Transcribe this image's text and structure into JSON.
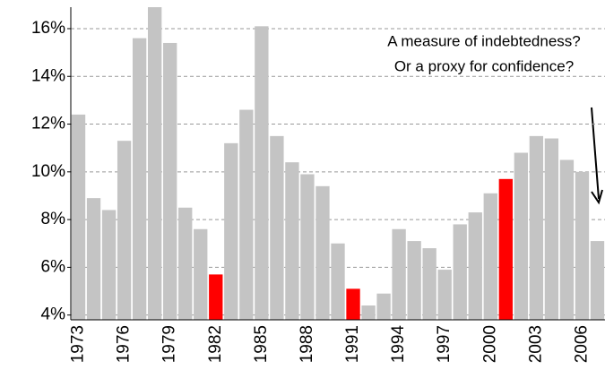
{
  "chart_data": {
    "type": "bar",
    "annotations": [
      "A measure of indebtedness?",
      "Or a proxy for confidence?"
    ],
    "categories": [
      "1973",
      null,
      null,
      "1976",
      null,
      null,
      "1979",
      null,
      null,
      "1982",
      null,
      null,
      "1985",
      null,
      null,
      "1988",
      null,
      null,
      "1991",
      null,
      null,
      "1994",
      null,
      null,
      "1997",
      null,
      null,
      "2000",
      null,
      null,
      "2003",
      null,
      null,
      "2006",
      null
    ],
    "values": [
      12.4,
      8.9,
      8.4,
      11.3,
      15.6,
      16.9,
      15.4,
      8.5,
      7.6,
      5.7,
      11.2,
      12.6,
      16.1,
      11.5,
      10.4,
      9.9,
      9.4,
      7.0,
      5.1,
      4.4,
      4.9,
      7.6,
      7.1,
      6.8,
      5.9,
      7.8,
      8.3,
      9.1,
      9.7,
      10.8,
      11.5,
      11.4,
      10.5,
      10.0,
      7.1
    ],
    "colors": [
      "#c4c4c4",
      "#c4c4c4",
      "#c4c4c4",
      "#c4c4c4",
      "#c4c4c4",
      "#c4c4c4",
      "#c4c4c4",
      "#c4c4c4",
      "#c4c4c4",
      "#ff0000",
      "#c4c4c4",
      "#c4c4c4",
      "#c4c4c4",
      "#c4c4c4",
      "#c4c4c4",
      "#c4c4c4",
      "#c4c4c4",
      "#c4c4c4",
      "#ff0000",
      "#c4c4c4",
      "#c4c4c4",
      "#c4c4c4",
      "#c4c4c4",
      "#c4c4c4",
      "#c4c4c4",
      "#c4c4c4",
      "#c4c4c4",
      "#c4c4c4",
      "#ff0000",
      "#c4c4c4",
      "#c4c4c4",
      "#c4c4c4",
      "#c4c4c4",
      "#c4c4c4",
      "#c4c4c4"
    ],
    "ylim": [
      3.8,
      16.9
    ],
    "yticks": [
      {
        "value": 4,
        "label": "4%"
      },
      {
        "value": 6,
        "label": "6%"
      },
      {
        "value": 8,
        "label": "8%"
      },
      {
        "value": 10,
        "label": "10%"
      },
      {
        "value": 12,
        "label": "12%"
      },
      {
        "value": 14,
        "label": "14%"
      },
      {
        "value": 16,
        "label": "16%"
      }
    ],
    "grid": true
  }
}
